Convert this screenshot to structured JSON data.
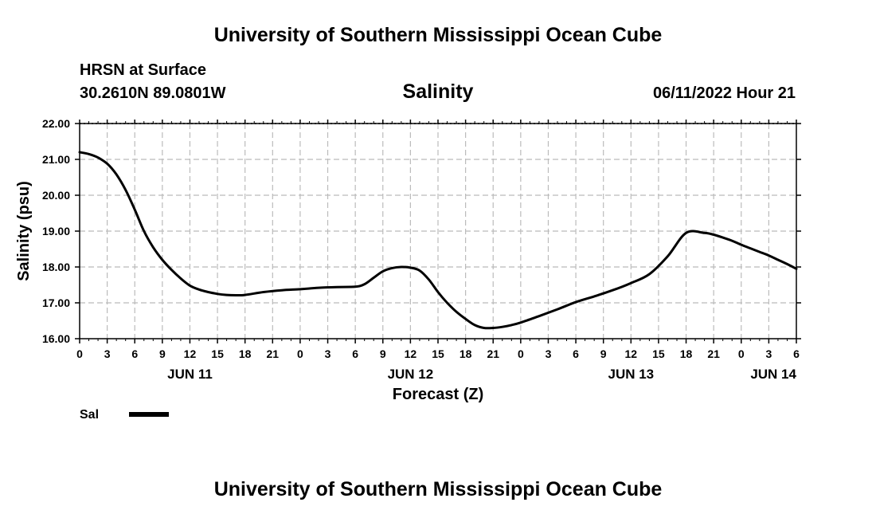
{
  "page": {
    "title_top": "University of Southern Mississippi Ocean Cube",
    "title_bottom": "University of Southern Mississippi Ocean Cube",
    "station": "HRSN at Surface",
    "coords": "30.2610N  89.0801W",
    "var_title": "Salinity",
    "datetime": "06/11/2022 Hour 21"
  },
  "chart_data": {
    "type": "line",
    "title": "Salinity",
    "xlabel": "Forecast (Z)",
    "ylabel": "Salinity (psu)",
    "ylim": [
      16.0,
      22.0
    ],
    "xlim": [
      0,
      78
    ],
    "y_ticks": [
      "16.00",
      "17.00",
      "18.00",
      "19.00",
      "20.00",
      "21.00",
      "22.00"
    ],
    "x_tick_labels": [
      "0",
      "3",
      "6",
      "9",
      "12",
      "15",
      "18",
      "21",
      "0",
      "3",
      "6",
      "9",
      "12",
      "15",
      "18",
      "21",
      "0",
      "3",
      "6",
      "9",
      "12",
      "15",
      "18",
      "21",
      "0",
      "3",
      "6"
    ],
    "day_labels": [
      {
        "label": "JUN 11",
        "hour": 12
      },
      {
        "label": "JUN 12",
        "hour": 36
      },
      {
        "label": "JUN 13",
        "hour": 60
      },
      {
        "label": "JUN 14",
        "hour": 75.5
      }
    ],
    "grid": true,
    "series": [
      {
        "name": "Sal",
        "color": "#000000",
        "x": [
          0,
          1,
          2,
          3,
          4,
          5,
          6,
          7,
          8,
          9,
          10,
          11,
          12,
          13,
          14,
          15,
          16,
          17,
          18,
          20,
          22,
          24,
          26,
          28,
          30,
          31,
          32,
          33,
          34,
          35,
          36,
          37,
          38,
          39,
          40,
          41,
          42,
          43,
          44,
          45,
          46,
          47,
          48,
          50,
          52,
          54,
          56,
          58,
          60,
          62,
          64,
          66,
          68,
          69,
          70,
          71,
          72,
          73,
          74,
          75,
          76,
          77,
          78
        ],
        "values": [
          21.2,
          21.15,
          21.05,
          20.88,
          20.58,
          20.15,
          19.6,
          19.0,
          18.55,
          18.2,
          17.92,
          17.68,
          17.48,
          17.37,
          17.3,
          17.25,
          17.22,
          17.21,
          17.22,
          17.3,
          17.35,
          17.38,
          17.42,
          17.44,
          17.45,
          17.52,
          17.7,
          17.88,
          17.97,
          18.0,
          17.98,
          17.9,
          17.65,
          17.3,
          17.0,
          16.75,
          16.55,
          16.38,
          16.3,
          16.3,
          16.33,
          16.38,
          16.45,
          16.63,
          16.82,
          17.02,
          17.18,
          17.35,
          17.55,
          17.8,
          18.3,
          18.95,
          18.95,
          18.9,
          18.82,
          18.73,
          18.62,
          18.52,
          18.42,
          18.32,
          18.2,
          18.08,
          17.95
        ]
      }
    ],
    "legend": [
      {
        "label": "Sal",
        "color": "#000000"
      }
    ]
  }
}
